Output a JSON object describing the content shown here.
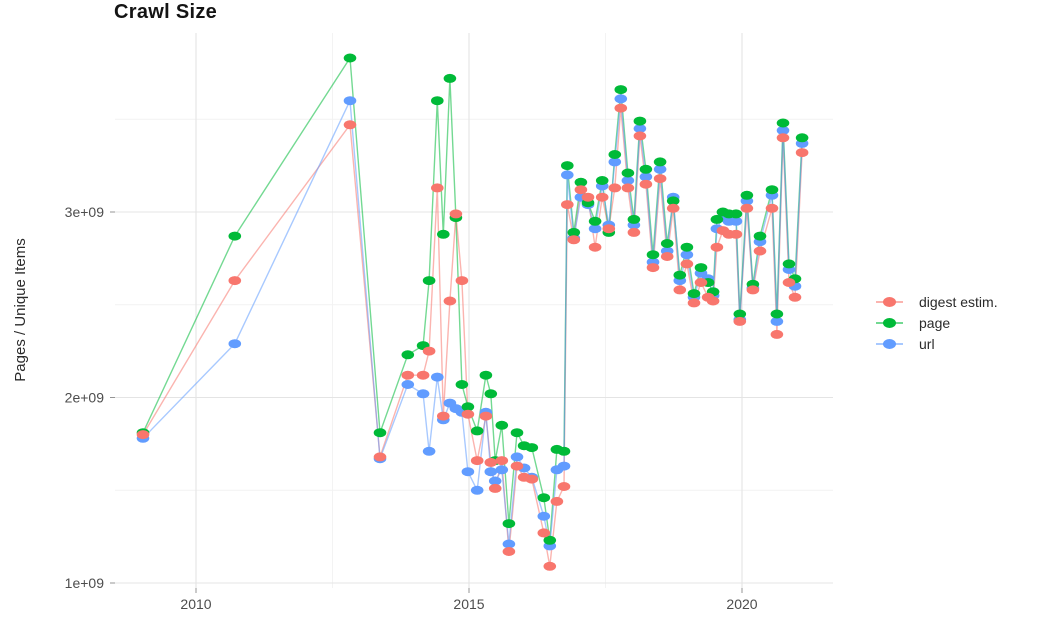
{
  "chart_data": {
    "type": "line",
    "title": "Crawl Size",
    "ylabel": "Pages / Unique Items",
    "xlabel": "",
    "unit": "billions (1e9) of pages / unique items",
    "legend_position": "right",
    "grid": "major+minor",
    "xlim": [
      2008.5,
      2021.7
    ],
    "ylim": [
      0.97,
      3.97
    ],
    "x_tick_labels": [
      "2010",
      "2015",
      "2020"
    ],
    "x_tick_values": [
      2010,
      2015,
      2020
    ],
    "x_minor_values": [
      2012.5,
      2017.5
    ],
    "y_tick_labels": [
      "1e+09",
      "2e+09",
      "3e+09"
    ],
    "y_tick_values": [
      1,
      2,
      3
    ],
    "y_minor_values": [
      1.5,
      2.5,
      3.5
    ],
    "x": [
      2009.03,
      2010.71,
      2012.82,
      2013.37,
      2013.88,
      2014.16,
      2014.27,
      2014.42,
      2014.53,
      2014.65,
      2014.76,
      2014.87,
      2014.98,
      2015.15,
      2015.31,
      2015.4,
      2015.48,
      2015.6,
      2015.73,
      2015.88,
      2016.01,
      2016.15,
      2016.37,
      2016.48,
      2016.61,
      2016.74,
      2016.8,
      2016.92,
      2017.05,
      2017.18,
      2017.31,
      2017.44,
      2017.56,
      2017.67,
      2017.78,
      2017.91,
      2018.02,
      2018.13,
      2018.24,
      2018.37,
      2018.5,
      2018.63,
      2018.74,
      2018.86,
      2018.99,
      2019.12,
      2019.25,
      2019.38,
      2019.47,
      2019.54,
      2019.65,
      2019.76,
      2019.89,
      2019.96,
      2020.09,
      2020.2,
      2020.33,
      2020.55,
      2020.64,
      2020.75,
      2020.86,
      2020.97,
      2021.1
    ],
    "series": [
      {
        "name": "digest estim.",
        "color": "#F8766D",
        "values": [
          1.8,
          2.63,
          3.47,
          1.68,
          2.12,
          2.12,
          2.25,
          3.13,
          1.9,
          2.52,
          2.99,
          2.63,
          1.91,
          1.66,
          1.9,
          1.65,
          1.51,
          1.66,
          1.17,
          1.63,
          1.57,
          1.56,
          1.27,
          1.09,
          1.44,
          1.52,
          3.04,
          2.85,
          3.12,
          3.08,
          2.81,
          3.08,
          2.91,
          3.13,
          3.56,
          3.13,
          2.89,
          3.41,
          3.15,
          2.7,
          3.18,
          2.76,
          3.02,
          2.58,
          2.72,
          2.51,
          2.62,
          2.54,
          2.52,
          2.81,
          2.9,
          2.88,
          2.88,
          2.41,
          3.02,
          2.58,
          2.79,
          3.02,
          2.34,
          3.4,
          2.62,
          2.54,
          3.32
        ]
      },
      {
        "name": "page",
        "color": "#00BA38",
        "values": [
          1.81,
          2.87,
          3.83,
          1.81,
          2.23,
          2.28,
          2.63,
          3.6,
          2.88,
          3.72,
          2.97,
          2.07,
          1.95,
          1.82,
          2.12,
          2.02,
          1.66,
          1.85,
          1.32,
          1.81,
          1.74,
          1.73,
          1.46,
          1.23,
          1.72,
          1.71,
          3.25,
          2.89,
          3.16,
          3.05,
          2.95,
          3.17,
          2.89,
          3.31,
          3.66,
          3.21,
          2.96,
          3.49,
          3.23,
          2.77,
          3.27,
          2.83,
          3.06,
          2.66,
          2.81,
          2.56,
          2.7,
          2.62,
          2.57,
          2.96,
          3.0,
          2.99,
          2.99,
          2.45,
          3.09,
          2.61,
          2.87,
          3.12,
          2.45,
          3.48,
          2.72,
          2.64,
          3.4
        ]
      },
      {
        "name": "url",
        "color": "#619CFF",
        "values": [
          1.78,
          2.29,
          3.6,
          1.67,
          2.07,
          2.02,
          1.71,
          2.11,
          1.88,
          1.97,
          1.94,
          1.92,
          1.6,
          1.5,
          1.92,
          1.6,
          1.55,
          1.61,
          1.21,
          1.68,
          1.62,
          1.57,
          1.36,
          1.2,
          1.61,
          1.63,
          3.2,
          2.86,
          3.08,
          3.04,
          2.91,
          3.14,
          2.93,
          3.27,
          3.61,
          3.17,
          2.93,
          3.45,
          3.19,
          2.73,
          3.23,
          2.79,
          3.08,
          2.63,
          2.77,
          2.54,
          2.67,
          2.64,
          2.55,
          2.91,
          2.97,
          2.95,
          2.95,
          2.42,
          3.06,
          2.59,
          2.84,
          3.09,
          2.41,
          3.44,
          2.69,
          2.6,
          3.37
        ]
      }
    ],
    "colors": {
      "grid_major": "#E4E4E4",
      "grid_minor": "#F2F2F2",
      "tick_mark": "#949494",
      "tick_label": "#4D4D4D"
    }
  }
}
